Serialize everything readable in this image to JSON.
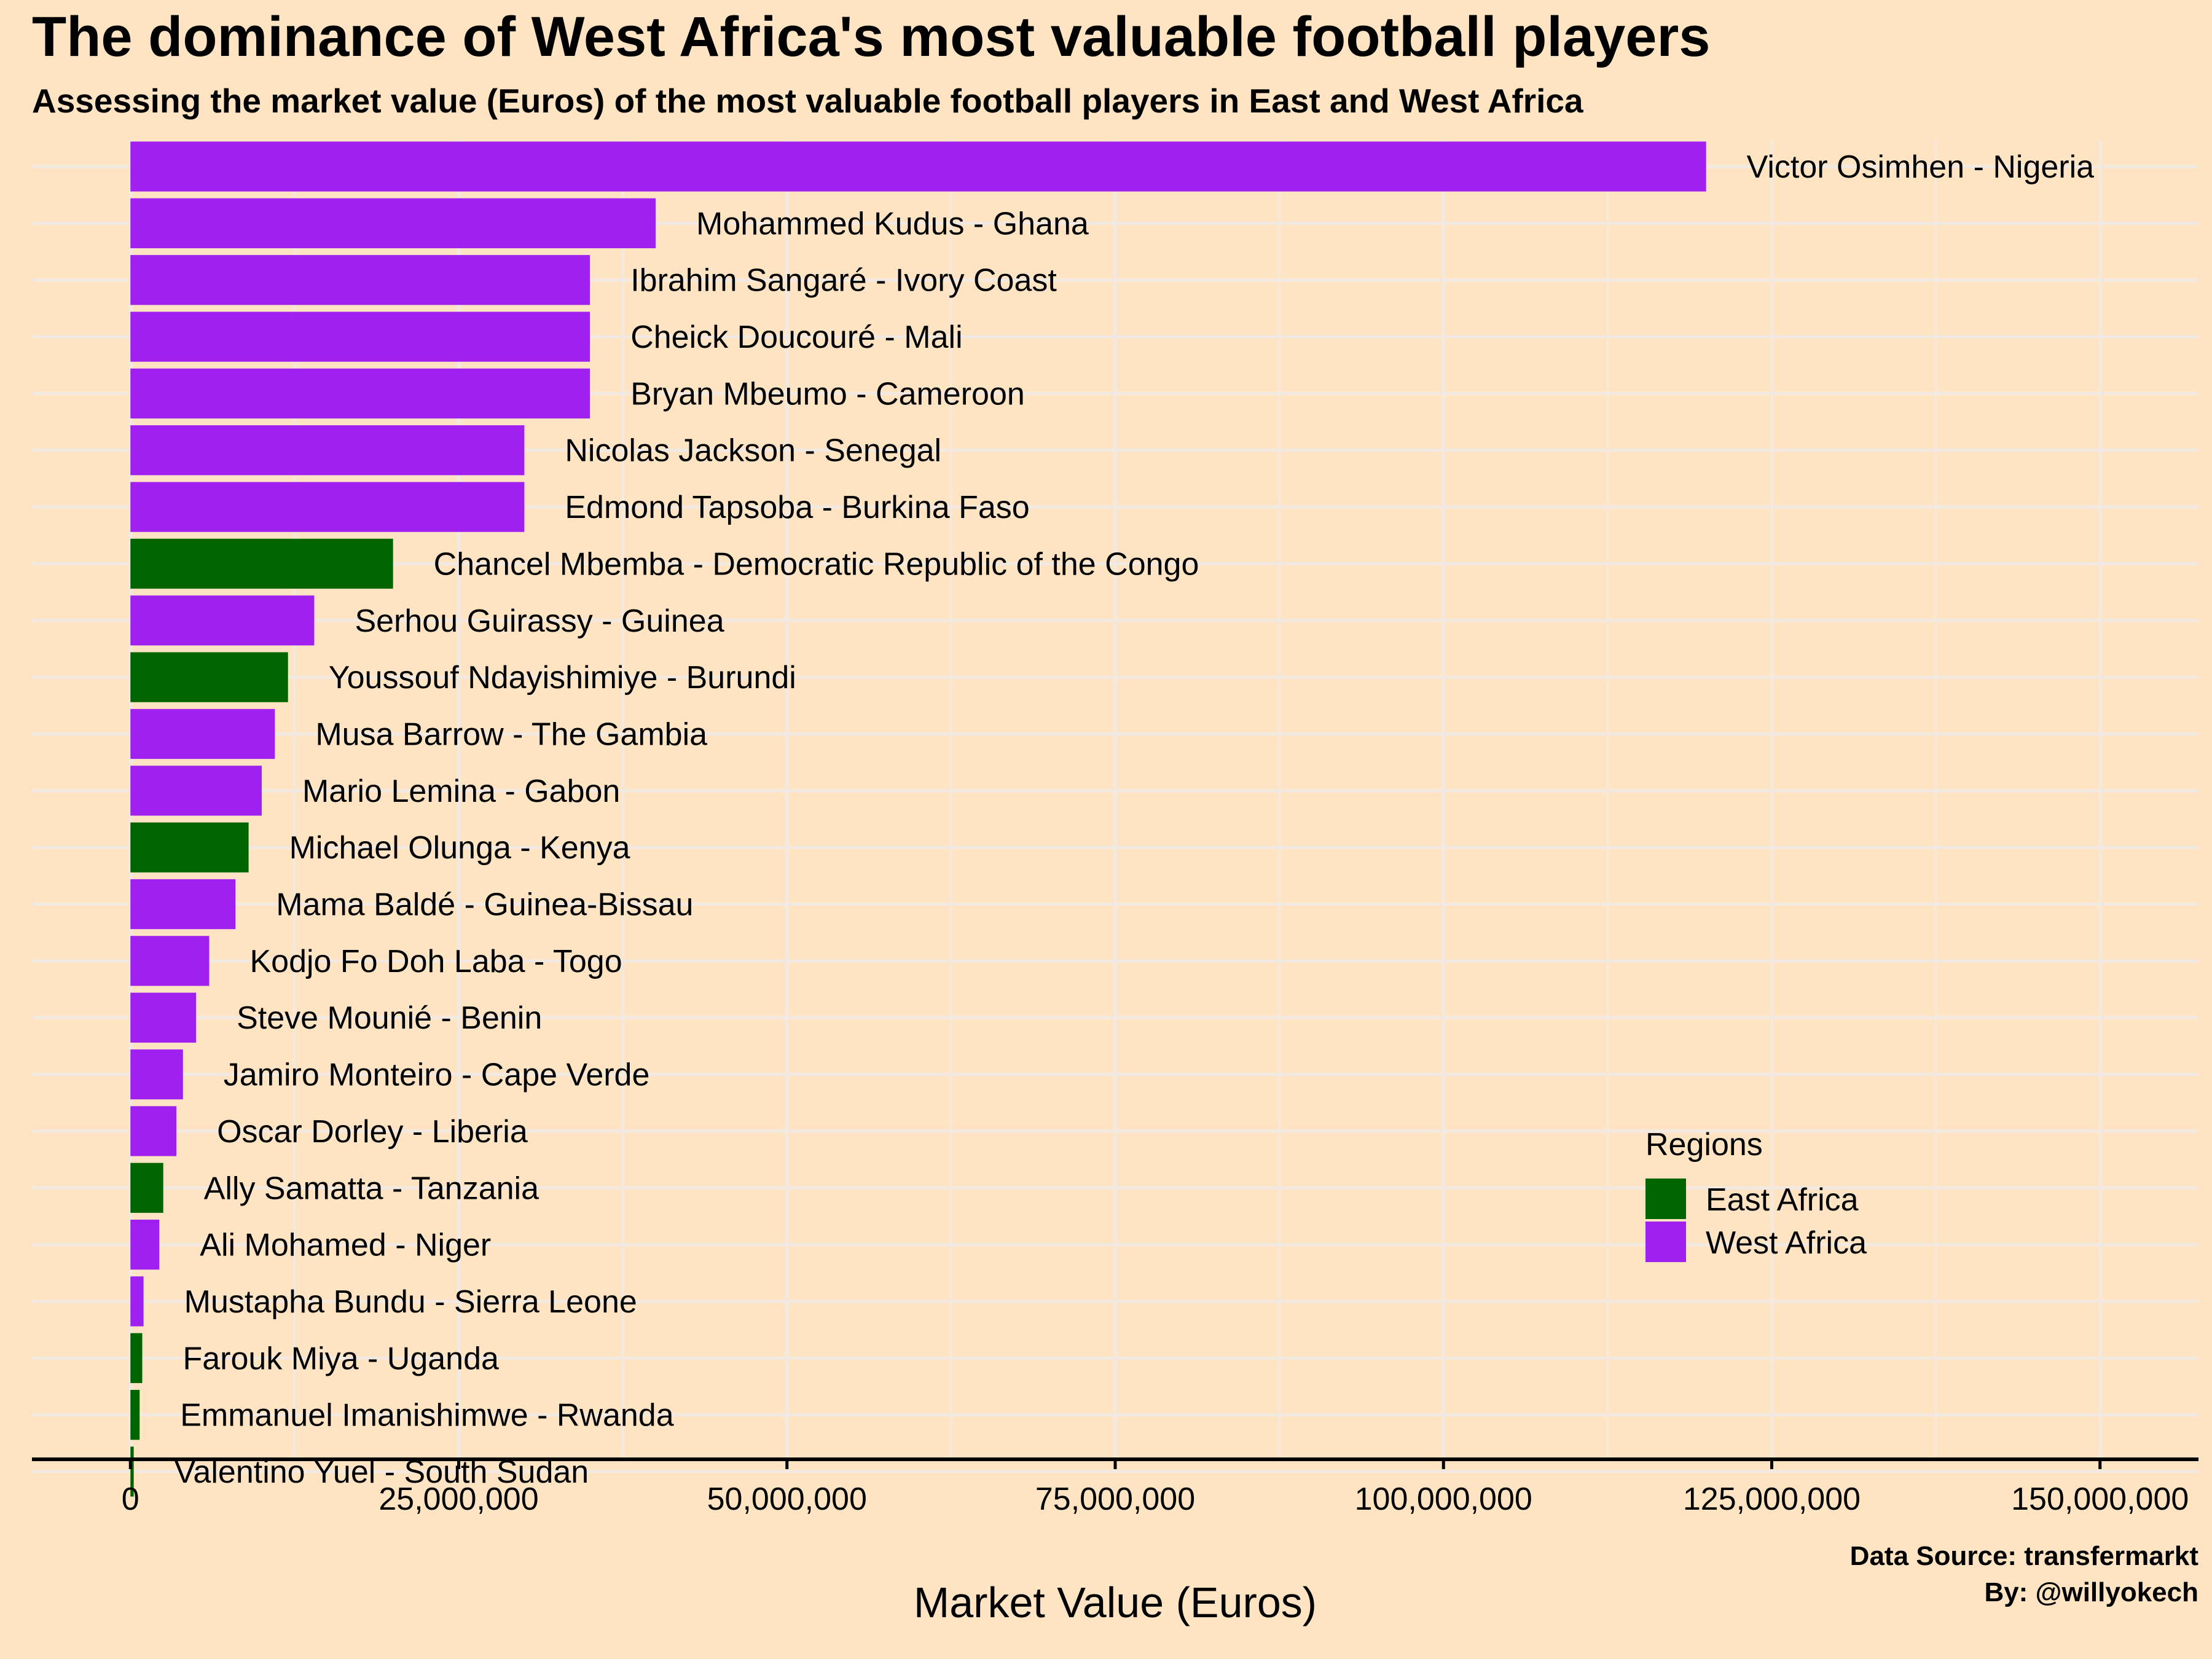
{
  "title": "The dominance of West Africa's most valuable football players",
  "subtitle": "Assessing the market value (Euros) of the most valuable football players in East and West Africa",
  "caption": {
    "source": "Data Source: transfermarkt",
    "byline": "By: @willyokech"
  },
  "colors": {
    "background": "#FFE4C4",
    "grid": "#F2EAE2",
    "East Africa": "#006400",
    "West Africa": "#A020F0"
  },
  "chart_data": {
    "type": "bar",
    "orientation": "horizontal",
    "title": "The dominance of West Africa's most valuable football players",
    "subtitle": "Assessing the market value (Euros) of the most valuable football players in East and West Africa",
    "xlabel": "Market Value (Euros)",
    "ylabel": "",
    "xlim": [
      -7500000,
      157500000
    ],
    "xticks": [
      0,
      25000000,
      50000000,
      75000000,
      100000000,
      125000000,
      150000000
    ],
    "xtick_labels": [
      "0",
      "25,000,000",
      "50,000,000",
      "75,000,000",
      "100,000,000",
      "125,000,000",
      "150,000,000"
    ],
    "grid": true,
    "legend": {
      "title": "Regions",
      "placement": "bottom-right",
      "entries": [
        "East Africa",
        "West Africa"
      ]
    },
    "bars": [
      {
        "label": "Victor Osimhen - Nigeria",
        "value": 120000000,
        "region": "West Africa"
      },
      {
        "label": "Mohammed Kudus - Ghana",
        "value": 40000000,
        "region": "West Africa"
      },
      {
        "label": "Ibrahim Sangaré - Ivory Coast",
        "value": 35000000,
        "region": "West Africa"
      },
      {
        "label": "Cheick Doucouré - Mali",
        "value": 35000000,
        "region": "West Africa"
      },
      {
        "label": "Bryan Mbeumo - Cameroon",
        "value": 35000000,
        "region": "West Africa"
      },
      {
        "label": "Nicolas Jackson - Senegal",
        "value": 30000000,
        "region": "West Africa"
      },
      {
        "label": "Edmond Tapsoba - Burkina Faso",
        "value": 30000000,
        "region": "West Africa"
      },
      {
        "label": "Chancel Mbemba - Democratic Republic of the Congo",
        "value": 20000000,
        "region": "East Africa"
      },
      {
        "label": "Serhou Guirassy - Guinea",
        "value": 14000000,
        "region": "West Africa"
      },
      {
        "label": "Youssouf Ndayishimiye - Burundi",
        "value": 12000000,
        "region": "East Africa"
      },
      {
        "label": "Musa Barrow - The Gambia",
        "value": 11000000,
        "region": "West Africa"
      },
      {
        "label": "Mario Lemina - Gabon",
        "value": 10000000,
        "region": "West Africa"
      },
      {
        "label": "Michael Olunga - Kenya",
        "value": 9000000,
        "region": "East Africa"
      },
      {
        "label": "Mama Baldé - Guinea-Bissau",
        "value": 8000000,
        "region": "West Africa"
      },
      {
        "label": "Kodjo Fo Doh Laba - Togo",
        "value": 6000000,
        "region": "West Africa"
      },
      {
        "label": "Steve Mounié - Benin",
        "value": 5000000,
        "region": "West Africa"
      },
      {
        "label": "Jamiro Monteiro - Cape Verde",
        "value": 4000000,
        "region": "West Africa"
      },
      {
        "label": "Oscar Dorley - Liberia",
        "value": 3500000,
        "region": "West Africa"
      },
      {
        "label": "Ally Samatta - Tanzania",
        "value": 2500000,
        "region": "East Africa"
      },
      {
        "label": "Ali Mohamed - Niger",
        "value": 2200000,
        "region": "West Africa"
      },
      {
        "label": "Mustapha Bundu - Sierra Leone",
        "value": 1000000,
        "region": "West Africa"
      },
      {
        "label": "Farouk Miya - Uganda",
        "value": 900000,
        "region": "East Africa"
      },
      {
        "label": "Emmanuel Imanishimwe - Rwanda",
        "value": 700000,
        "region": "East Africa"
      },
      {
        "label": "Valentino Yuel - South Sudan",
        "value": 250000,
        "region": "East Africa"
      }
    ]
  }
}
